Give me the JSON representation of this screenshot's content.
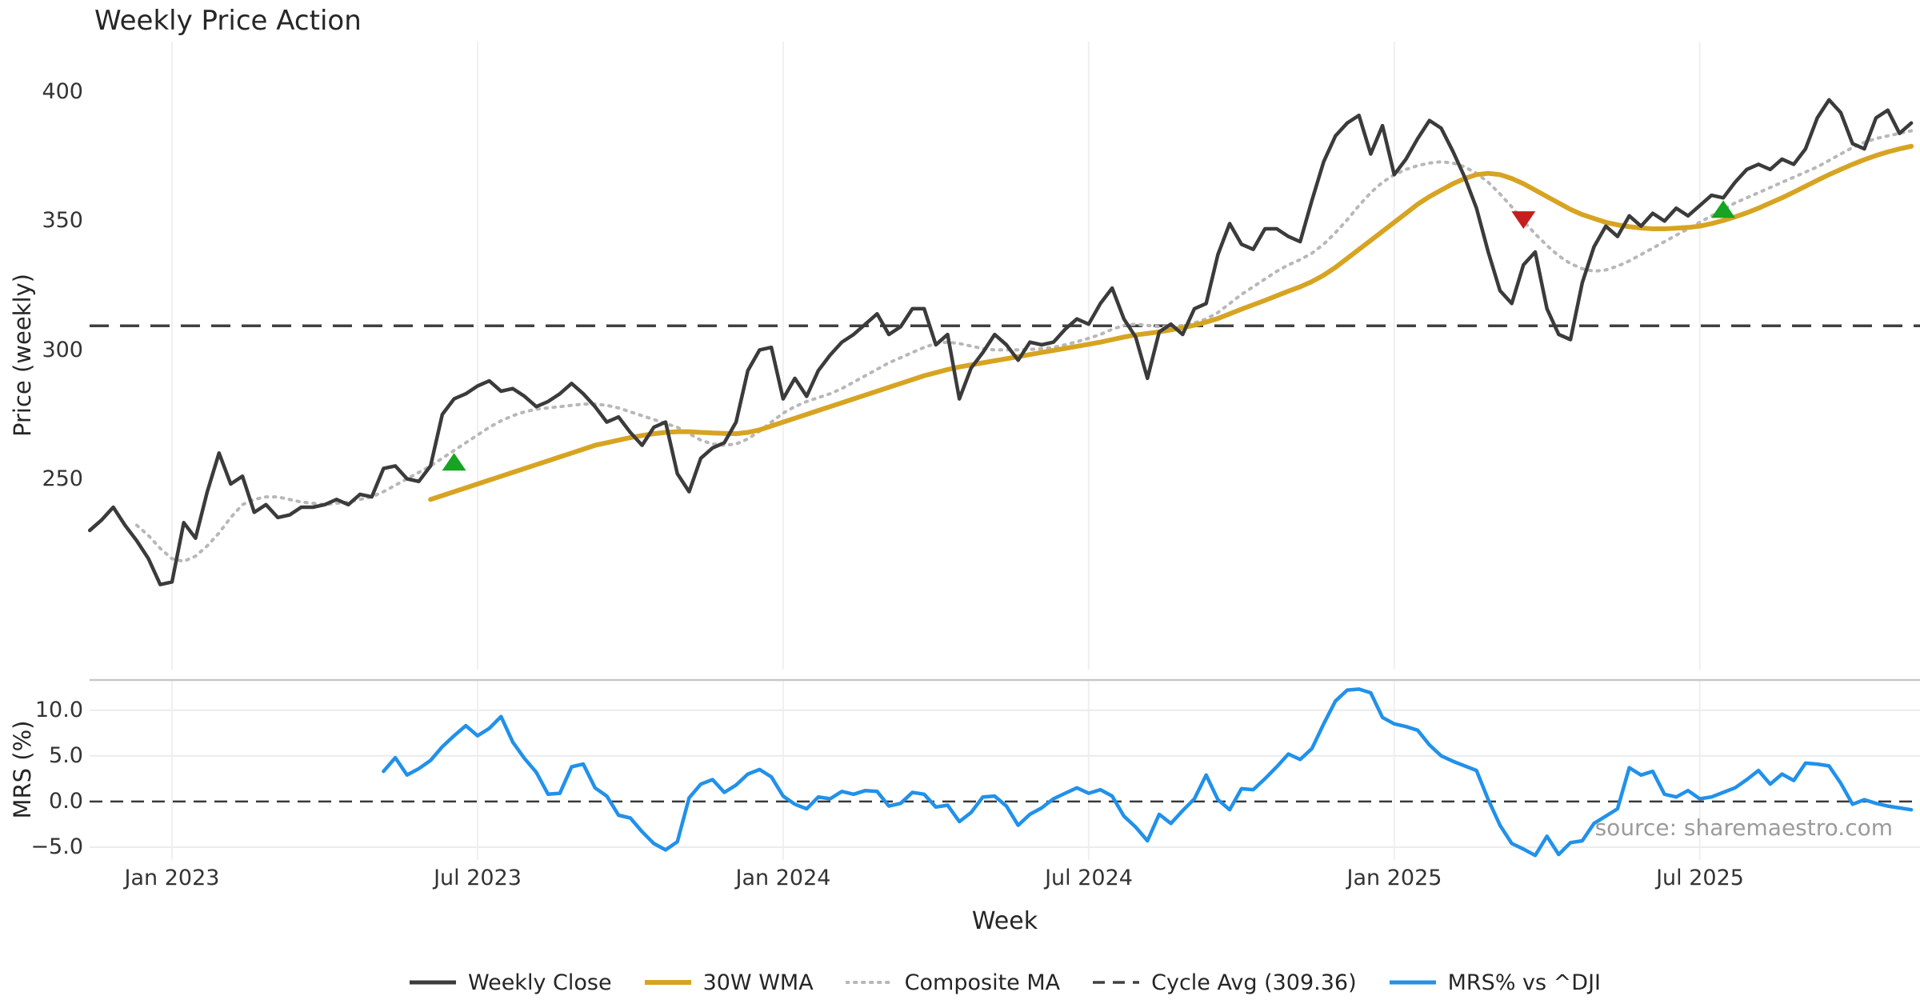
{
  "title": "Weekly Price Action",
  "source_text": "source: sharemaestro.com",
  "axes": {
    "price": {
      "label": "Price (weekly)",
      "ticks": [
        "400",
        "350",
        "300",
        "250"
      ]
    },
    "mrs": {
      "label": "MRS (%)",
      "ticks": [
        "10.0",
        "5.0",
        "0.0",
        "−5.0"
      ]
    },
    "x": {
      "label": "Week",
      "ticks": [
        "Jan 2023",
        "Jul 2023",
        "Jan 2024",
        "Jul 2024",
        "Jan 2025",
        "Jul 2025"
      ]
    }
  },
  "legend": {
    "items": [
      {
        "label": "Weekly Close",
        "style": "solid",
        "color": "#3b3b3b",
        "width": 5
      },
      {
        "label": "30W WMA",
        "style": "solid",
        "color": "#d7a422",
        "width": 6
      },
      {
        "label": "Composite MA",
        "style": "dotted",
        "color": "#b8b8b8",
        "width": 4
      },
      {
        "label": "Cycle Avg (309.36)",
        "style": "dashed",
        "color": "#404040",
        "width": 3.5
      },
      {
        "label": "MRS% vs ^DJI",
        "style": "solid",
        "color": "#2191ea",
        "width": 5
      }
    ]
  },
  "colors": {
    "weekly_close": "#3b3b3b",
    "wma_30w": "#d7a422",
    "composite_ma": "#b8b8b8",
    "cycle_avg": "#404040",
    "mrs_line": "#2191ea",
    "buy_marker": "#16a422",
    "sell_marker": "#c51e1e",
    "grid_vertical": "#f0f0f2",
    "grid_horizontal": "#ececec",
    "panel_border": "#c8c8c8",
    "zero_dash": "#3a3a3a"
  },
  "chart_data": [
    {
      "type": "line",
      "panel": "price",
      "title": "Weekly Price Action",
      "ylabel": "Price (weekly)",
      "xlabel": "Week",
      "ylim": [
        176,
        419.6
      ],
      "yticks": [
        400,
        350,
        300,
        250
      ],
      "x_tick_labels": [
        "Jan 2023",
        "Jul 2023",
        "Jan 2024",
        "Jul 2024",
        "Jan 2025",
        "Jul 2025"
      ],
      "x_tick_week_indices": [
        7,
        33,
        59,
        85,
        111,
        137
      ],
      "grid": "vertical-only",
      "legend_position": "bottom-center",
      "cycle_avg_value": 309.36,
      "series": [
        {
          "name": "Weekly Close",
          "style": "solid",
          "start_index": 0,
          "values": [
            230,
            234,
            239,
            232,
            226,
            219,
            209,
            210,
            233,
            227,
            245,
            260,
            248,
            251,
            237,
            240,
            235,
            236,
            239,
            239,
            240,
            242,
            240,
            244,
            243,
            254,
            255,
            250,
            249,
            255,
            275,
            281,
            283,
            286,
            288,
            284,
            285,
            282,
            278,
            280,
            283,
            287,
            283,
            278,
            272,
            274,
            268,
            263,
            270,
            272,
            252,
            245,
            258,
            262,
            264,
            272,
            292,
            300,
            301,
            281,
            289,
            282,
            292,
            298,
            303,
            306,
            310,
            314,
            306,
            309,
            316,
            316,
            302,
            306,
            281,
            293,
            299,
            306,
            302,
            296,
            303,
            302,
            303,
            308,
            312,
            310,
            318,
            324,
            312,
            305,
            289,
            307,
            310,
            306,
            316,
            318,
            337,
            349,
            341,
            339,
            347,
            347,
            344,
            342,
            358,
            373,
            383,
            388,
            391,
            376,
            387,
            368,
            374,
            382,
            389,
            386,
            377,
            367,
            355,
            338,
            323,
            318,
            333,
            338,
            316,
            306,
            304,
            326,
            340,
            348,
            344,
            352,
            348,
            353,
            350,
            355,
            352,
            356,
            360,
            359,
            365,
            370,
            372,
            370,
            374,
            372,
            378,
            390,
            397,
            392,
            380,
            378,
            390,
            393,
            384,
            388
          ]
        },
        {
          "name": "30W WMA",
          "style": "solid",
          "start_index": 29,
          "values": [
            242,
            243.5,
            245,
            246.5,
            248,
            249.5,
            251,
            252.5,
            254,
            255.5,
            257,
            258.5,
            260,
            261.5,
            263,
            264,
            265,
            266,
            266.8,
            267.5,
            268,
            268.3,
            268.3,
            268,
            267.8,
            267.6,
            267.5,
            268,
            269,
            270.5,
            272,
            273.5,
            275,
            276.5,
            278,
            279.5,
            281,
            282.5,
            284,
            285.5,
            287,
            288.5,
            290,
            291.2,
            292.4,
            293.4,
            294.2,
            295,
            295.8,
            296.6,
            297.4,
            298.2,
            299,
            299.8,
            300.6,
            301.4,
            302.2,
            303,
            304,
            305,
            305.8,
            306.4,
            307,
            307.8,
            308.6,
            309.6,
            310.8,
            312.2,
            314,
            315.8,
            317.5,
            319.2,
            321,
            322.8,
            324.5,
            326.5,
            329,
            332,
            335.5,
            339,
            342.5,
            346,
            349.5,
            353,
            356.5,
            359.5,
            362,
            364.5,
            366.5,
            368,
            368.5,
            368,
            366.5,
            364.5,
            362,
            359.5,
            357,
            354.5,
            352.5,
            351,
            349.5,
            348.5,
            347.8,
            347.3,
            347,
            347,
            347.2,
            347.5,
            348,
            349,
            350.2,
            351.6,
            353.2,
            355,
            357,
            359,
            361.2,
            363.5,
            365.8,
            368,
            370,
            372,
            373.8,
            375.4,
            376.8,
            378,
            379
          ]
        },
        {
          "name": "Composite MA",
          "style": "dotted",
          "start_index": 4,
          "values": [
            232,
            228,
            223,
            219,
            218,
            220,
            224,
            229,
            235,
            240,
            242,
            243,
            243,
            242,
            241,
            240.5,
            240,
            240.5,
            241,
            242,
            243,
            245,
            247.5,
            250,
            252.5,
            255,
            258,
            261,
            264,
            267,
            270,
            272.5,
            274.5,
            276,
            277,
            277.5,
            278,
            278.5,
            279,
            279,
            278.5,
            277.5,
            276,
            274.5,
            273,
            271.5,
            270,
            267.5,
            265,
            263.5,
            263,
            263.5,
            265.5,
            268.5,
            272,
            275.5,
            278,
            280,
            281.5,
            283,
            285,
            287.5,
            290,
            292.5,
            295,
            297,
            299,
            301,
            302.5,
            303,
            302.5,
            301.5,
            300.5,
            300,
            300,
            300,
            300.2,
            300.5,
            301,
            302,
            303.2,
            304.5,
            306,
            308,
            309.5,
            310,
            309.5,
            309,
            309,
            309.5,
            310.5,
            312,
            314.5,
            318,
            321.5,
            324.5,
            327.5,
            330.5,
            333,
            335,
            337.5,
            341,
            345.5,
            350.5,
            356,
            361,
            365,
            368,
            370,
            371.5,
            372.5,
            373,
            372.5,
            371,
            368.5,
            365,
            360.5,
            355.5,
            350,
            345,
            340.5,
            336.5,
            333.5,
            331.5,
            330.5,
            331,
            332.5,
            334.5,
            337,
            339.5,
            342,
            344.5,
            347,
            349.5,
            352,
            354.5,
            357,
            359,
            361,
            363,
            365,
            367,
            369,
            371,
            373.5,
            376,
            378.5,
            380.5,
            382,
            383,
            384,
            385
          ]
        },
        {
          "name": "Cycle Avg (309.36)",
          "style": "dashed",
          "constant": 309.36
        }
      ],
      "markers": [
        {
          "type": "buy",
          "week_index": 31,
          "price": 256
        },
        {
          "type": "sell",
          "week_index": 122,
          "price": 351
        },
        {
          "type": "buy",
          "week_index": 139,
          "price": 354
        }
      ]
    },
    {
      "type": "line",
      "panel": "mrs",
      "ylabel": "MRS (%)",
      "ylim": [
        -6.4,
        13.3
      ],
      "yticks": [
        10.0,
        5.0,
        0.0,
        -5.0
      ],
      "grid": "both",
      "zero_line": "dashed",
      "series": [
        {
          "name": "MRS% vs ^DJI",
          "style": "solid",
          "start_index": 25,
          "values": [
            3.3,
            4.8,
            2.9,
            3.6,
            4.5,
            6.0,
            7.2,
            8.3,
            7.2,
            8.0,
            9.3,
            6.5,
            4.7,
            3.2,
            0.8,
            0.9,
            3.8,
            4.1,
            1.5,
            0.6,
            -1.5,
            -1.8,
            -3.3,
            -4.6,
            -5.3,
            -4.4,
            0.4,
            1.9,
            2.4,
            1.0,
            1.8,
            3.0,
            3.5,
            2.7,
            0.6,
            -0.3,
            -0.8,
            0.5,
            0.3,
            1.1,
            0.8,
            1.2,
            1.1,
            -0.5,
            -0.2,
            1.0,
            0.8,
            -0.6,
            -0.4,
            -2.2,
            -1.2,
            0.5,
            0.6,
            -0.5,
            -2.6,
            -1.4,
            -0.7,
            0.3,
            0.9,
            1.5,
            0.9,
            1.3,
            0.6,
            -1.6,
            -2.8,
            -4.3,
            -1.4,
            -2.4,
            -1.0,
            0.3,
            2.9,
            0.2,
            -0.9,
            1.4,
            1.3,
            2.5,
            3.8,
            5.2,
            4.6,
            5.8,
            8.5,
            11.0,
            12.2,
            12.3,
            11.9,
            9.2,
            8.5,
            8.2,
            7.8,
            6.2,
            5.0,
            4.4,
            3.9,
            3.4,
            0.2,
            -2.6,
            -4.6,
            -5.2,
            -5.9,
            -3.8,
            -5.8,
            -4.5,
            -4.3,
            -2.4,
            -1.6,
            -0.8,
            3.7,
            2.9,
            3.3,
            0.8,
            0.5,
            1.2,
            0.3,
            0.5,
            1.0,
            1.5,
            2.4,
            3.4,
            1.9,
            3.0,
            2.3,
            4.2,
            4.1,
            3.9,
            2.0,
            -0.3,
            0.2,
            -0.2,
            -0.5,
            -0.7,
            -0.9
          ]
        }
      ]
    }
  ]
}
